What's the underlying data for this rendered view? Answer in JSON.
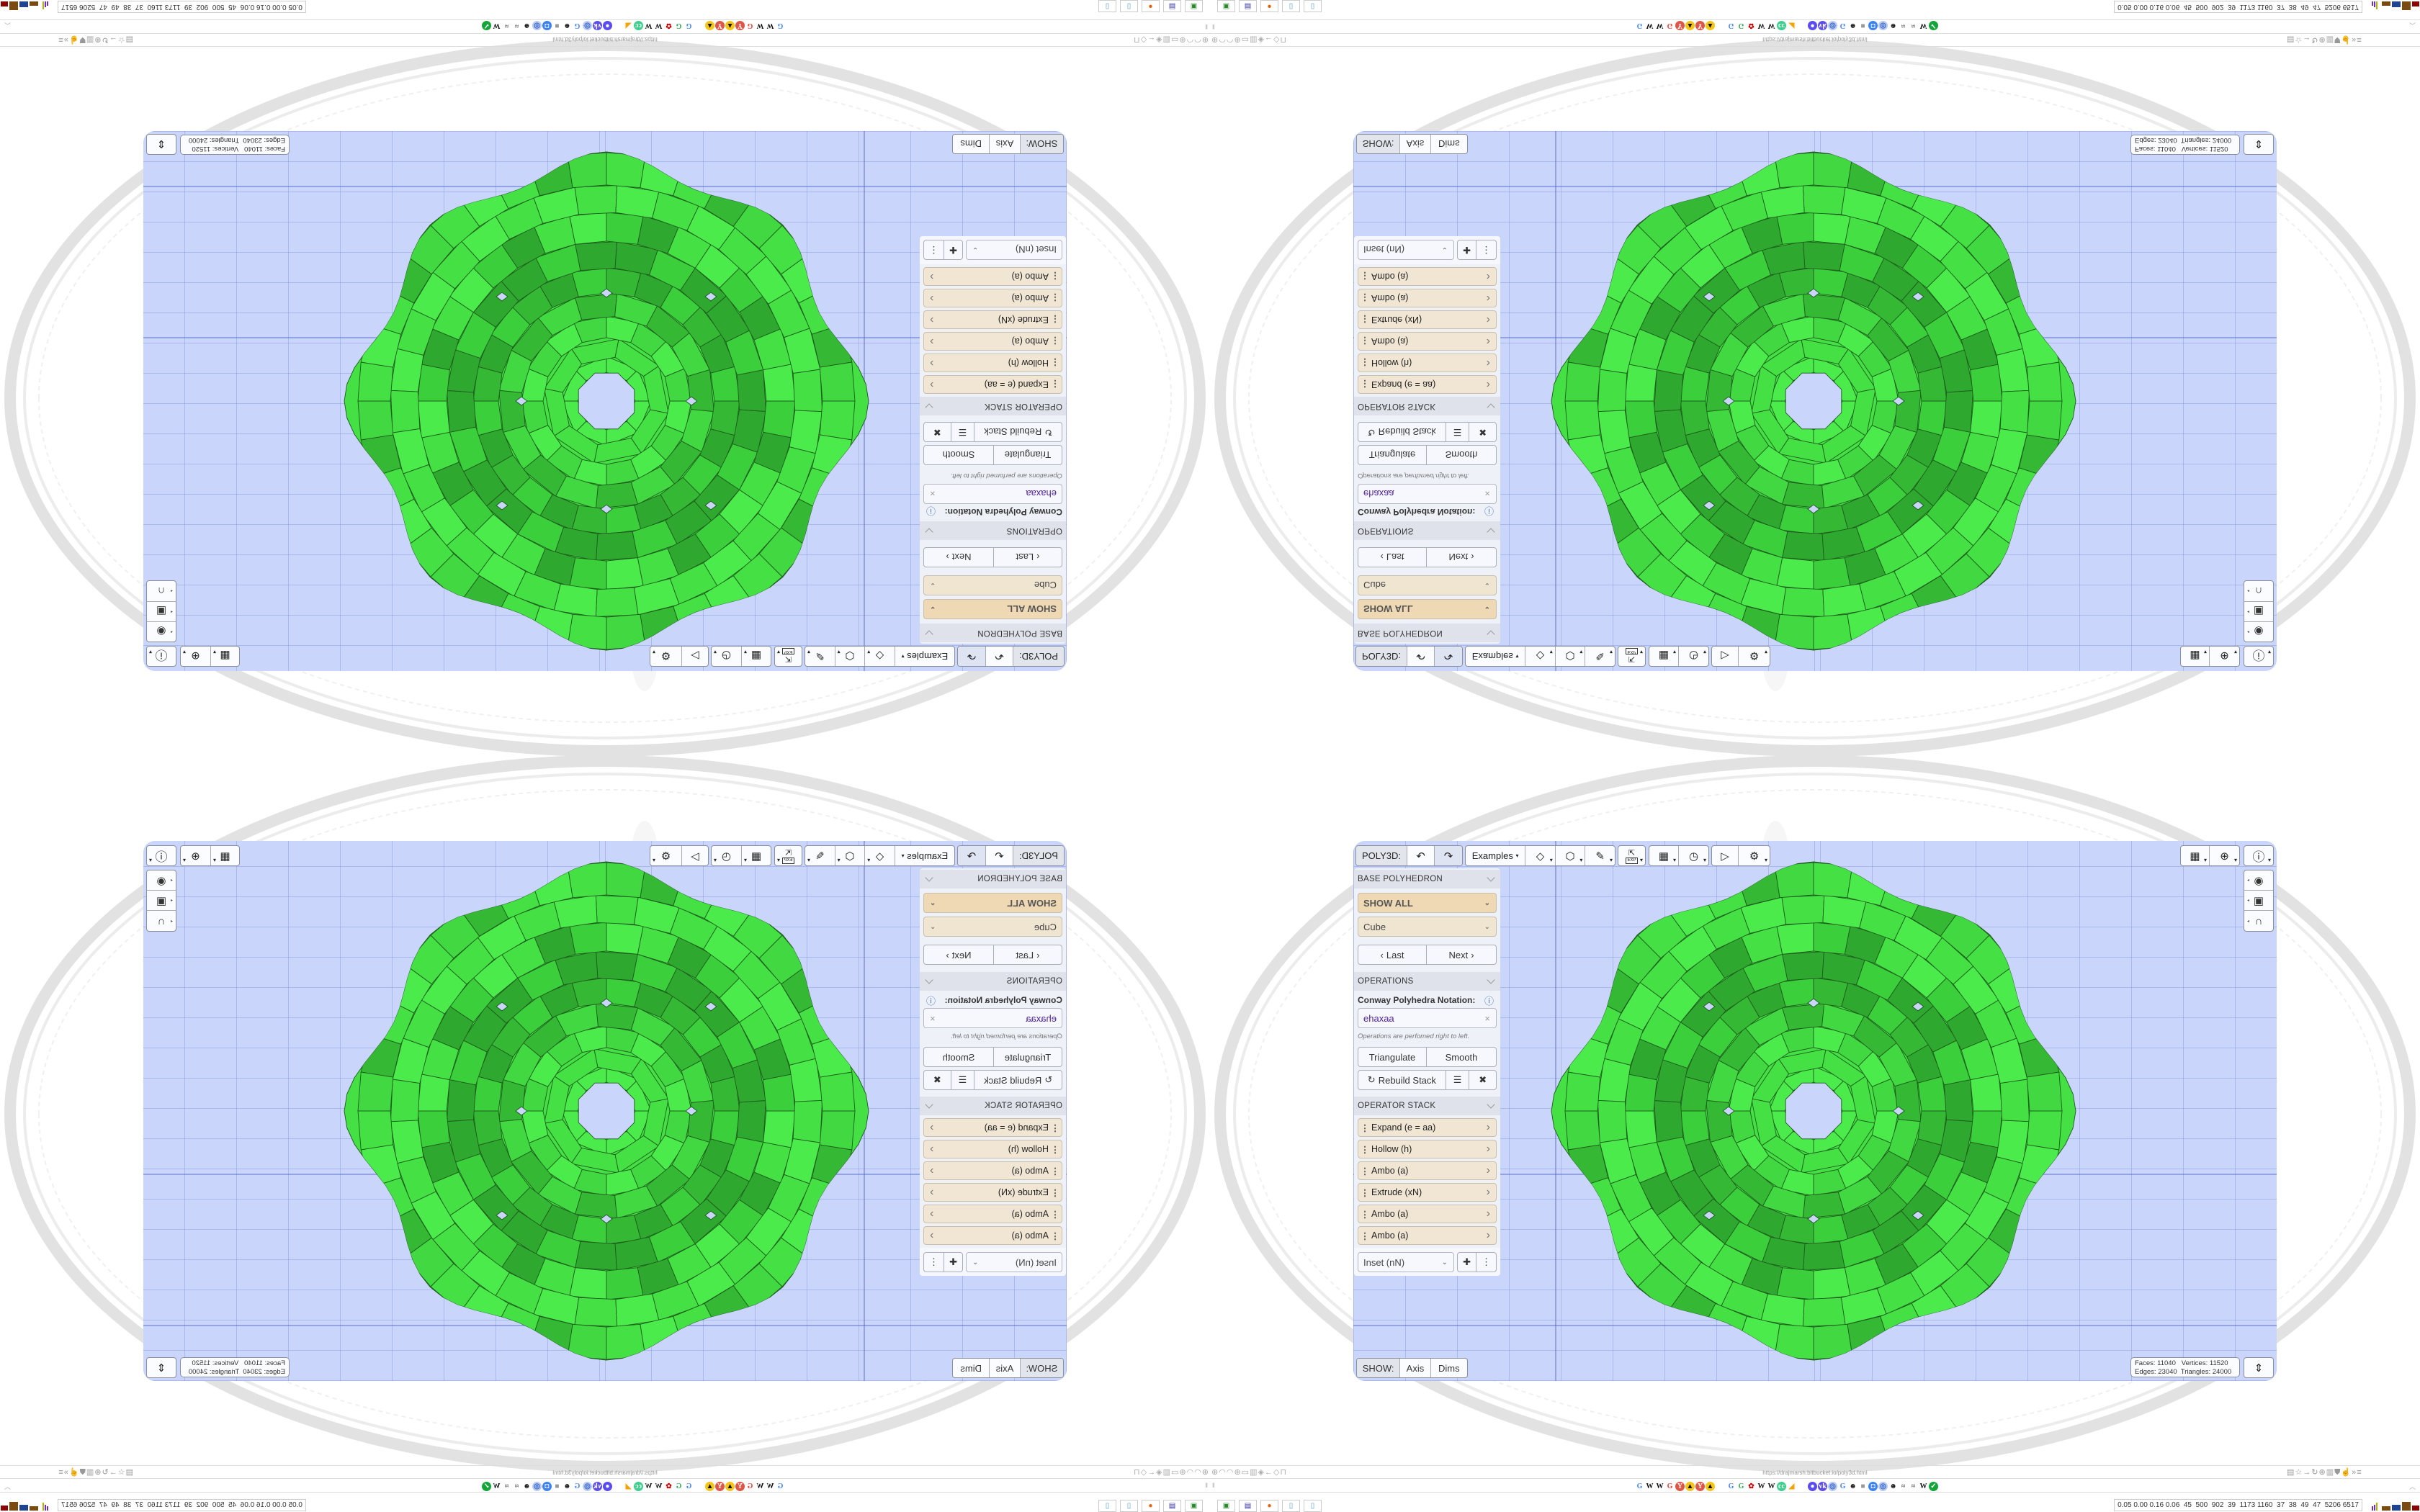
{
  "toolbar": {
    "app_label": "POLY3D:",
    "examples_label": "Examples",
    "icons": [
      "undo-icon",
      "redo-icon",
      "tag-icon",
      "cube-icon",
      "pencil-icon",
      "export-icon",
      "calendar-icon",
      "clock-icon",
      "play-icon",
      "gear-icon"
    ],
    "export_text": "EXP"
  },
  "panel": {
    "base": {
      "title": "BASE POLYHEDRON",
      "filter": "SHOW ALL",
      "shape": "Cube",
      "last": "Last",
      "next": "Next"
    },
    "operations": {
      "title": "OPERATIONS",
      "notation_label": "Conway Polyhedra Notation:",
      "notation_value": "ehaxaa",
      "note": "Operations are perfomed right to left.",
      "triangulate": "Triangulate",
      "smooth": "Smooth",
      "rebuild": "Rebuild Stack"
    },
    "stack": {
      "title": "OPERATOR STACK",
      "items": [
        "Expand (e = aa)",
        "Hollow (h)",
        "Ambo (a)",
        "Extrude (xN)",
        "Ambo (a)",
        "Ambo (a)"
      ],
      "add_select": "Inset (nN)"
    }
  },
  "show_bar": {
    "label": "SHOW:",
    "axis": "Axis",
    "dims": "Dims"
  },
  "stats": {
    "faces_label": "Faces:",
    "faces": "11040",
    "vertices_label": "Vertices:",
    "vertices": "11520",
    "edges_label": "Edges:",
    "edges": "23040",
    "triangles_label": "Triangles:",
    "triangles": "24000"
  },
  "colors": {
    "polyhedron": "#44e044",
    "polyhedron_edge": "#1d5c1d",
    "viewport_bg": "#c9d5fa",
    "stack_item_bg": "#f0e6d3",
    "notation_text": "#4b1fa0"
  },
  "browser": {
    "url": "https://drajmarsh.bitbucket.io/poly3d.html",
    "perf_stats": "0.05 0.00 0.16 0.06  45  500  902  39  1173 1160  37  38  49  47  5206 6517",
    "bookmarks": [
      {
        "g": "G",
        "c": "#4285f4",
        "b": "transparent"
      },
      {
        "g": "W",
        "c": "#111",
        "b": "transparent"
      },
      {
        "g": "W",
        "c": "#111",
        "b": "transparent"
      },
      {
        "g": "G",
        "c": "#ea4335",
        "b": "transparent"
      },
      {
        "g": "Y",
        "c": "#fff",
        "b": "#e05545"
      },
      {
        "g": "▲",
        "c": "#111",
        "b": "#f5c518"
      },
      {
        "g": "Y",
        "c": "#fff",
        "b": "#e05545"
      },
      {
        "g": "▲",
        "c": "#111",
        "b": "#f5c518"
      },
      {
        "g": "",
        "c": "",
        "b": "gap"
      },
      {
        "g": "G",
        "c": "#4285f4",
        "b": "transparent"
      },
      {
        "g": "G",
        "c": "#34a853",
        "b": "transparent"
      },
      {
        "g": "✿",
        "c": "#c00",
        "b": "transparent"
      },
      {
        "g": "W",
        "c": "#111",
        "b": "transparent"
      },
      {
        "g": "W",
        "c": "#111",
        "b": "transparent"
      },
      {
        "g": "cc",
        "c": "#fff",
        "b": "#3ccf8e"
      },
      {
        "g": "◢",
        "c": "#f4a300",
        "b": "transparent"
      },
      {
        "g": "",
        "c": "",
        "b": "gap"
      },
      {
        "g": "●",
        "c": "#fff",
        "b": "#5b4cf0"
      },
      {
        "g": "vk",
        "c": "#fff",
        "b": "#5b4cf0"
      },
      {
        "g": "◎",
        "c": "#2d5fd0",
        "b": "#b8c9f2"
      },
      {
        "g": "G",
        "c": "#4285f4",
        "b": "transparent"
      },
      {
        "g": "☻",
        "c": "#222",
        "b": "transparent"
      },
      {
        "g": "■",
        "c": "#999",
        "b": "transparent"
      },
      {
        "g": "◘",
        "c": "#fff",
        "b": "#3b82f6"
      },
      {
        "g": "◎",
        "c": "#2d5fd0",
        "b": "#b8c9f2"
      },
      {
        "g": "☻",
        "c": "#222",
        "b": "transparent"
      },
      {
        "g": "≈",
        "c": "#555",
        "b": "transparent"
      },
      {
        "g": "≈",
        "c": "#555",
        "b": "transparent"
      },
      {
        "g": "W",
        "c": "#111",
        "b": "transparent"
      },
      {
        "g": "✓",
        "c": "#fff",
        "b": "#13a538"
      }
    ],
    "security_icons": [
      "globe-icon",
      "phone-icon",
      "phone-icon",
      "globe-icon",
      "folder-icon",
      "trash-icon",
      "shield-badge-icon",
      "arrow-left-icon",
      "shield-icon",
      "lock-icon"
    ],
    "right_icons": [
      "translate-icon",
      "star-icon",
      "arrow-right-icon",
      "reload-icon",
      "globe-icon",
      "trash-icon",
      "ublock-icon",
      "thumb-icon",
      "overflow-icon",
      "menu-icon"
    ],
    "taskbar": [
      "disk-app-icon",
      "floppy-64-icon",
      "firefox-icon",
      "notepad-icon",
      "notepad-icon"
    ],
    "floppy_label": "64"
  }
}
